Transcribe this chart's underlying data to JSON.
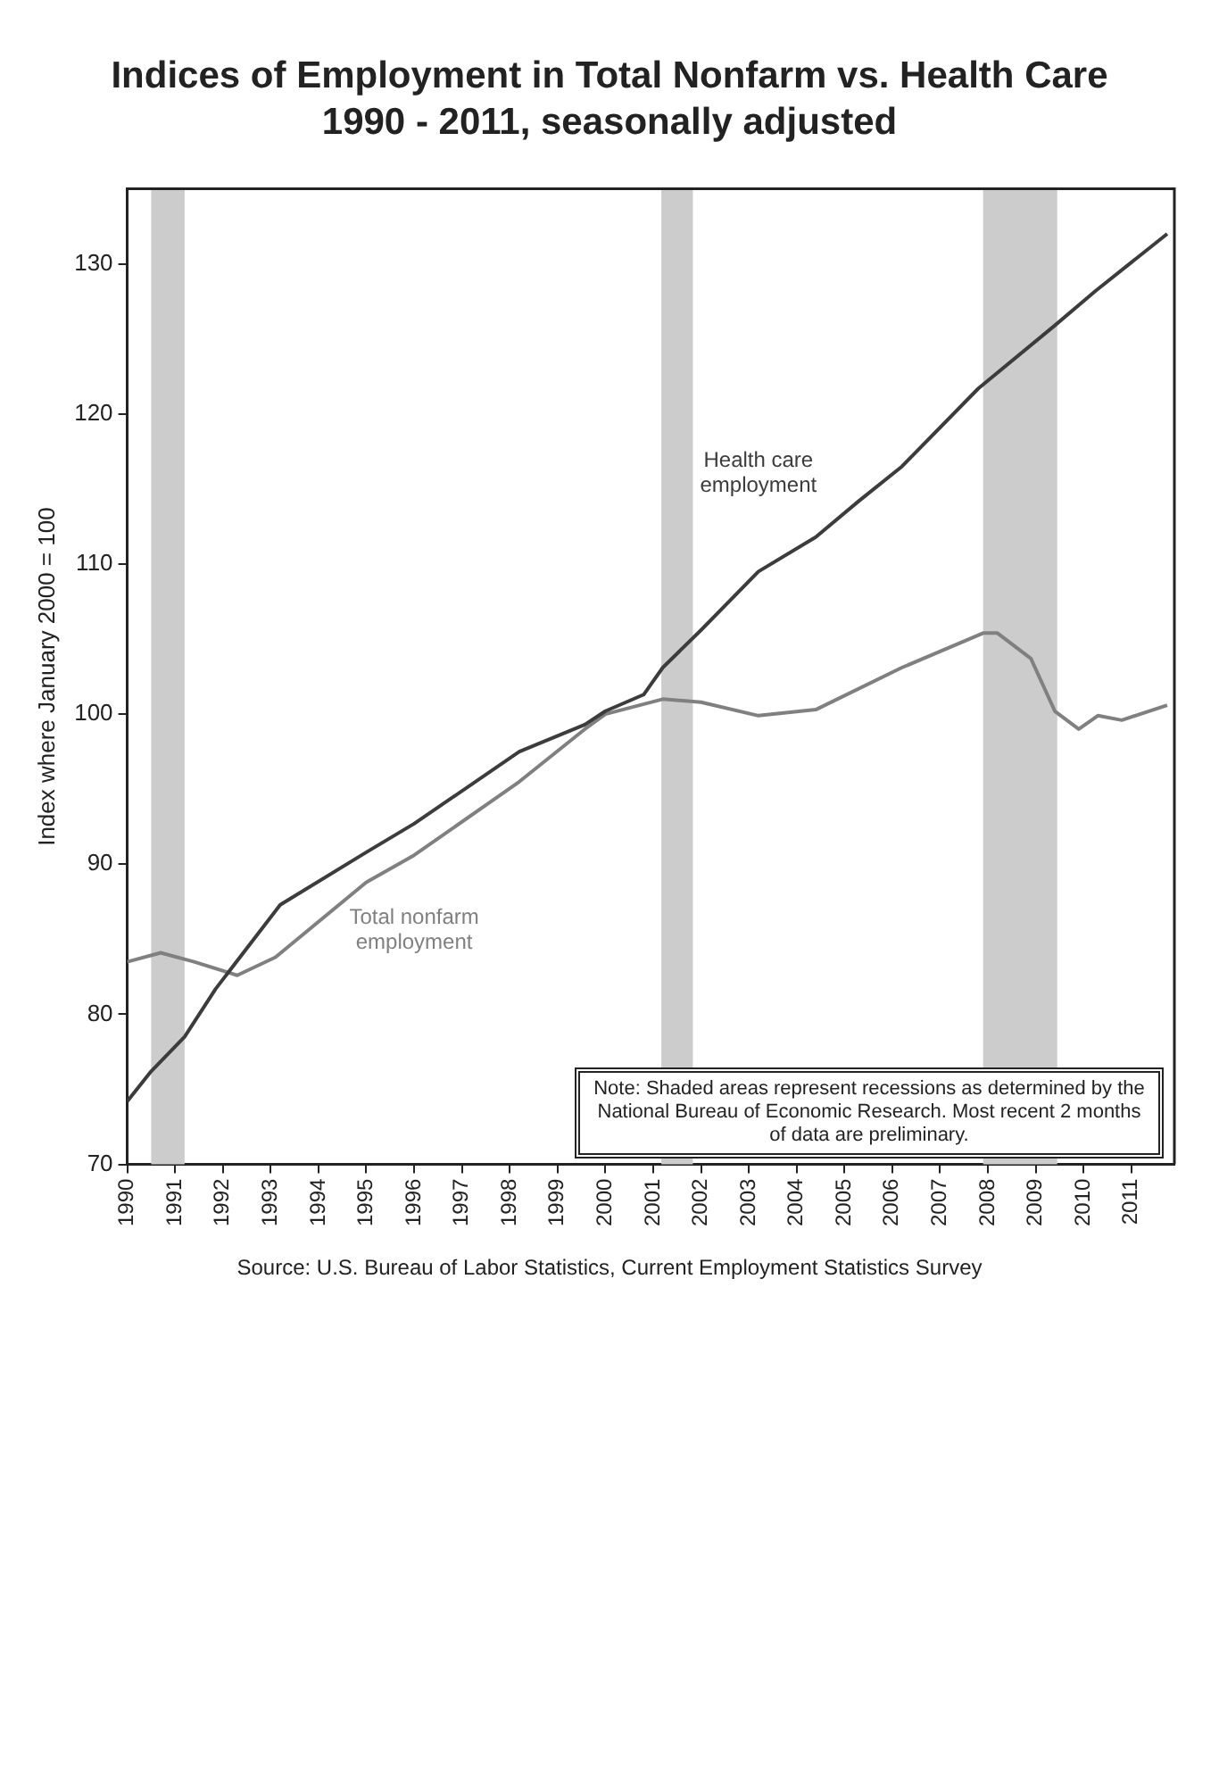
{
  "chart_data": {
    "type": "line",
    "title": "Indices of Employment in Total Nonfarm vs. Health Care",
    "subtitle": "1990 - 2011, seasonally adjusted",
    "ylabel": "Index where January 2000 = 100",
    "xlim": [
      1990,
      2011.9
    ],
    "xticks": [
      1990,
      1991,
      1992,
      1993,
      1994,
      1995,
      1996,
      1997,
      1998,
      1999,
      2000,
      2001,
      2002,
      2003,
      2004,
      2005,
      2006,
      2007,
      2008,
      2009,
      2010,
      2011
    ],
    "ylim": [
      70,
      135
    ],
    "yticks": [
      70,
      80,
      90,
      100,
      110,
      120,
      130
    ],
    "grid": false,
    "legend": false,
    "marker": "none",
    "bands": [
      {
        "axis": "x",
        "from": 1990.5,
        "to": 1991.2,
        "color": "#cccccc"
      },
      {
        "axis": "x",
        "from": 2001.17,
        "to": 2001.83,
        "color": "#cccccc"
      },
      {
        "axis": "x",
        "from": 2007.9,
        "to": 2009.45,
        "color": "#cccccc"
      }
    ],
    "series": [
      {
        "type": "line",
        "name": "Health care employment",
        "color": "#3c3c3c",
        "x": [
          1990,
          1990.5,
          1991.2,
          1991.85,
          1993.2,
          1995,
          1996,
          1998.2,
          1999.57,
          2000,
          2000.8,
          2001.2,
          2002,
          2003.2,
          2004.4,
          2005.3,
          2006.2,
          2007.8,
          2009.4,
          2010.25,
          2011.75
        ],
        "values": [
          74.2,
          76.2,
          78.5,
          81.7,
          87.3,
          90.8,
          92.7,
          97.5,
          99.3,
          100.2,
          101.3,
          103.1,
          105.6,
          109.5,
          111.8,
          114.2,
          116.5,
          121.7,
          125.9,
          128.2,
          132
        ]
      },
      {
        "type": "line",
        "name": "Total nonfarm employment",
        "color": "#808080",
        "x": [
          1990,
          1990.7,
          1991.4,
          1992.3,
          1993.1,
          1995,
          1996,
          1998.2,
          1999.57,
          2000,
          2001.2,
          2002,
          2003.2,
          2004.4,
          2006.2,
          2007.9,
          2008.2,
          2008.9,
          2009.4,
          2009.9,
          2010.3,
          2010.8,
          2011.75
        ],
        "values": [
          83.5,
          84.1,
          83.5,
          82.6,
          83.8,
          88.8,
          90.6,
          95.5,
          99,
          100,
          101,
          100.8,
          99.9,
          100.3,
          103.1,
          105.4,
          105.4,
          103.7,
          100.2,
          99,
          99.9,
          99.6,
          100.6
        ]
      }
    ],
    "annotations": [
      "Note: Shaded areas represent recessions as determined by the National Bureau of Economic Research.  Most recent 2 months of data are preliminary.",
      "Source: U.S. Bureau of Labor Statistics, Current Employment Statistics Survey"
    ]
  }
}
